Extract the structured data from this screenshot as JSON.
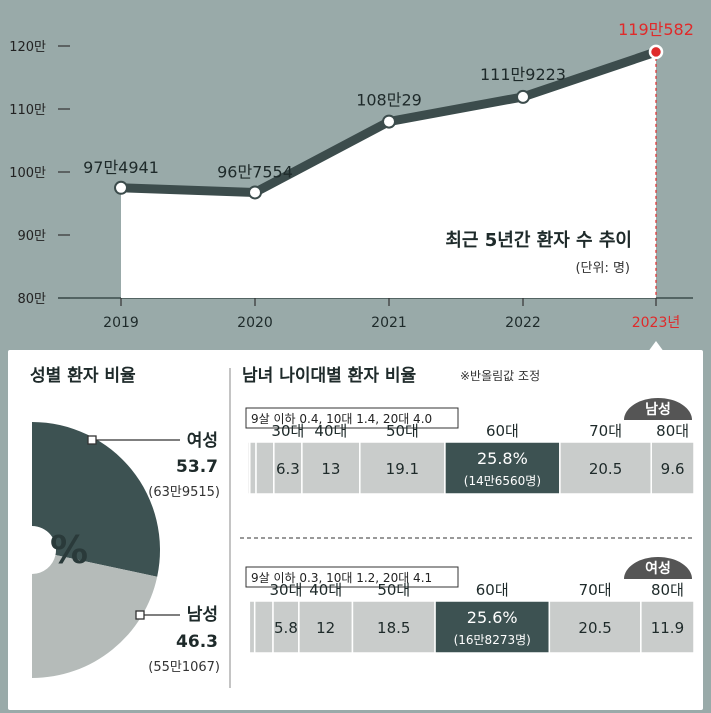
{
  "chart_data": [
    {
      "type": "line",
      "title": "최근 5년간 환자 수 추이",
      "unit": "(단위: 명)",
      "categories": [
        "2019",
        "2020",
        "2021",
        "2022",
        "2023년"
      ],
      "values": [
        974941,
        967554,
        1080029,
        1119223,
        1190582
      ],
      "point_labels": [
        "97만4941",
        "96만7554",
        "108만29",
        "111만9223",
        "119만582"
      ],
      "y_ticks": [
        "80만",
        "90만",
        "100만",
        "110만",
        "120만"
      ],
      "y_tick_values": [
        800000,
        900000,
        1000000,
        1100000,
        1200000
      ],
      "ylim": [
        800000,
        1200000
      ],
      "highlight_color": "#e02a2a",
      "line_color": "#3c4c4c"
    },
    {
      "type": "pie",
      "title": "성별 환자 비율",
      "center_label": "%",
      "slices": [
        {
          "name": "여성",
          "value": 53.7,
          "count": "(63만9515)",
          "color": "#3d5252"
        },
        {
          "name": "남성",
          "value": 46.3,
          "count": "(55만1067)",
          "color": "#b5bbb9"
        }
      ]
    },
    {
      "type": "bar",
      "title": "남녀 나이대별 환자 비율",
      "note": "※반올림값 조정",
      "groups": [
        {
          "name": "남성",
          "small_note": "9살 이하 0.4, 10대 1.4, 20대 4.0",
          "categories": [
            "30대",
            "40대",
            "50대",
            "60대",
            "70대",
            "80대"
          ],
          "values": [
            6.3,
            13,
            19.1,
            25.8,
            20.5,
            9.6
          ],
          "value_labels": [
            "6.3",
            "13",
            "19.1",
            "25.8%",
            "20.5",
            "9.6"
          ],
          "highlight_count": "(14만6560명)"
        },
        {
          "name": "여성",
          "small_note": "9살 이하 0.3, 10대 1.2, 20대 4.1",
          "categories": [
            "30대",
            "40대",
            "50대",
            "60대",
            "70대",
            "80대"
          ],
          "values": [
            5.8,
            12,
            18.5,
            25.6,
            20.5,
            11.9
          ],
          "value_labels": [
            "5.8",
            "12",
            "18.5",
            "25.6%",
            "20.5",
            "11.9"
          ],
          "highlight_count": "(16만8273명)"
        }
      ],
      "small_values": [
        [
          0.4,
          1.4,
          4.0
        ],
        [
          0.3,
          1.2,
          4.1
        ]
      ],
      "colors": {
        "bar": "#c9cccb",
        "highlight": "#3d5252",
        "divider": "#ffffff"
      }
    }
  ]
}
